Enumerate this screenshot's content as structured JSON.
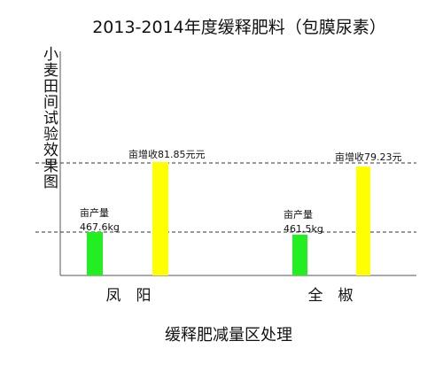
{
  "title": "2013-2014年度缓释肥料（包膜尿素）",
  "y_label": "小麦田间试验效果图",
  "x_label": "缓释肥减量区处理",
  "groups": [
    {
      "name": "凤　阳",
      "yield_label": "亩产量",
      "yield_value": "467.6kg",
      "income_label": "亩增收81.85元元"
    },
    {
      "name": "全　椒",
      "yield_label": "亩产量",
      "yield_value": "461.5kg",
      "income_label": "亩增收79.23元"
    }
  ]
}
